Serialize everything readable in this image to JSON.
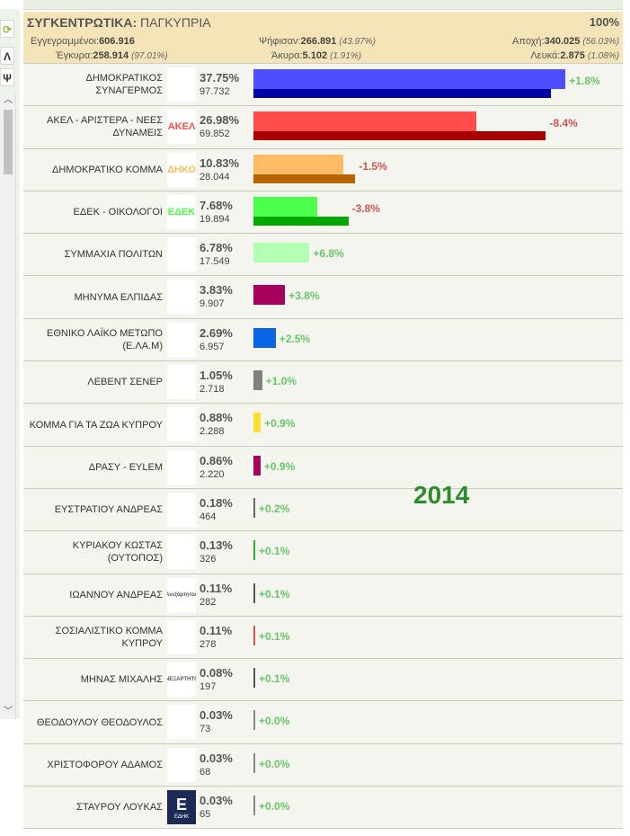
{
  "header": {
    "title_bold": "ΣΥΓΚΕΝΤΡΩΤΙΚΑ:",
    "title_rest": "ΠΑΓΚΥΠΡΙΑ",
    "counted": "100%",
    "registered_label": "Εγγεγραμμένοι:",
    "registered": "606.916",
    "voted_label": "Ψήφισαν:",
    "voted": "266.891",
    "voted_pct": "(43.97%)",
    "abstention_label": "Αποχή:",
    "abstention": "340.025",
    "abstention_pct": "(56.03%)",
    "valid_label": "Έγκυρα:",
    "valid": "258.914",
    "valid_pct": "(97.01%)",
    "invalid_label": "Άκυρα:",
    "invalid": "5.102",
    "invalid_pct": "(1.91%)",
    "blank_label": "Λευκά:",
    "blank": "2.875",
    "blank_pct": "(1.08%)"
  },
  "left_panel": {
    "btn1": "Λ",
    "btn2": "Ψ"
  },
  "year_label": "2014",
  "parties": [
    {
      "name": "ΔΗΜΟΚΡΑΤΙΚΟΣ ΣΥΝΑΓΕΡΜΟΣ",
      "pct": "37.75%",
      "votes": "97.732",
      "change": "+1.8%",
      "pct_value": 37.75,
      "prev_value": 35.95,
      "color": "#4d4dff",
      "prev_color": "#0000a8"
    },
    {
      "name": "ΑΚΕΛ - ΑΡΙΣΤΕΡΑ - ΝΕΕΣ ΔΥΝΑΜΕΙΣ",
      "pct": "26.98%",
      "votes": "69.852",
      "change": "-8.4%",
      "pct_value": 26.98,
      "prev_value": 35.38,
      "color": "#ff4d4d",
      "prev_color": "#a80000",
      "logo_text": "ΑΚΕΛ"
    },
    {
      "name": "ΔΗΜΟΚΡΑΤΙΚΟ ΚΟΜΜΑ",
      "pct": "10.83%",
      "votes": "28.044",
      "change": "-1.5%",
      "pct_value": 10.83,
      "prev_value": 12.33,
      "color": "#ffbb66",
      "prev_color": "#b86400",
      "logo_text": "ΔΗΚΟ"
    },
    {
      "name": "ΕΔΕΚ - ΟΙΚΟΛΟΓΟΙ",
      "pct": "7.68%",
      "votes": "19.894",
      "change": "-3.8%",
      "pct_value": 7.68,
      "prev_value": 11.48,
      "color": "#4dff4d",
      "prev_color": "#00a800",
      "logo_text": "ΕΔΕΚ"
    },
    {
      "name": "ΣΥΜΜΑΧΙΑ ΠΟΛΙΤΩΝ",
      "pct": "6.78%",
      "votes": "17.549",
      "change": "+6.8%",
      "pct_value": 6.78,
      "color": "#b3ffb3"
    },
    {
      "name": "ΜΗΝΥΜΑ ΕΛΠΙΔΑΣ",
      "pct": "3.83%",
      "votes": "9.907",
      "change": "+3.8%",
      "pct_value": 3.83,
      "color": "#a6005a"
    },
    {
      "name": "ΕΘΝΙΚΟ ΛΑΪΚΟ ΜΕΤΩΠΟ (Ε.ΛΑ.Μ)",
      "pct": "2.69%",
      "votes": "6.957",
      "change": "+2.5%",
      "pct_value": 2.69,
      "color": "#0a64e6"
    },
    {
      "name": "ΛΕΒΕΝΤ ΣΕΝΕΡ",
      "pct": "1.05%",
      "votes": "2.718",
      "change": "+1.0%",
      "pct_value": 1.05,
      "color": "#808080"
    },
    {
      "name": "ΚΟΜΜΑ ΓΙΑ ΤΑ ΖΩΑ ΚΥΠΡΟΥ",
      "pct": "0.88%",
      "votes": "2.288",
      "change": "+0.9%",
      "pct_value": 0.88,
      "color": "#ffdd33"
    },
    {
      "name": "ΔΡΑΣΥ - EYLEM",
      "pct": "0.86%",
      "votes": "2.220",
      "change": "+0.9%",
      "pct_value": 0.86,
      "color": "#a6005a"
    },
    {
      "name": "ΕΥΣΤΡΑΤΙΟΥ ΑΝΔΡΕΑΣ",
      "pct": "0.18%",
      "votes": "464",
      "change": "+0.2%",
      "pct_value": 0.18,
      "color": "#666666"
    },
    {
      "name": "ΚΥΡΙΑΚΟΥ ΚΩΣΤΑΣ (ΟΥΤΟΠΟΣ)",
      "pct": "0.13%",
      "votes": "326",
      "change": "+0.1%",
      "pct_value": 0.13,
      "color": "#33aa33"
    },
    {
      "name": "ΙΩΑΝΝΟΥ ΑΝΔΡΕΑΣ",
      "pct": "0.11%",
      "votes": "282",
      "change": "+0.1%",
      "pct_value": 0.11,
      "color": "#555555",
      "logo_text": "Ανεξάρτητος"
    },
    {
      "name": "ΣΟΣΙΑΛΙΣΤΙΚΟ ΚΟΜΜΑ ΚΥΠΡΟΥ",
      "pct": "0.11%",
      "votes": "278",
      "change": "+0.1%",
      "pct_value": 0.11,
      "color": "#dd5555"
    },
    {
      "name": "ΜΗΝΑΣ ΜΙΧΑΛΗΣ",
      "pct": "0.08%",
      "votes": "197",
      "change": "+0.1%",
      "pct_value": 0.08,
      "color": "#555555",
      "logo_text": "ΑΝΕΞΑΡΤΗΤΟΣ"
    },
    {
      "name": "ΘΕΟΔΟΥΛΟΥ ΘΕΟΔΟΥΛΟΣ",
      "pct": "0.03%",
      "votes": "73",
      "change": "+0.0%",
      "pct_value": 0.03,
      "color": "#888888"
    },
    {
      "name": "ΧΡΙΣΤΟΦΟΡΟΥ ΑΔΑΜΟΣ",
      "pct": "0.03%",
      "votes": "68",
      "change": "+0.0%",
      "pct_value": 0.03,
      "color": "#888888"
    },
    {
      "name": "ΣΤΑΥΡΟΥ ΛΟΥΚΑΣ",
      "pct": "0.03%",
      "votes": "65",
      "change": "+0.0%",
      "pct_value": 0.03,
      "color": "#888888",
      "logo_text": "E",
      "logo_subtext": "ΕΔΗΚ"
    }
  ]
}
